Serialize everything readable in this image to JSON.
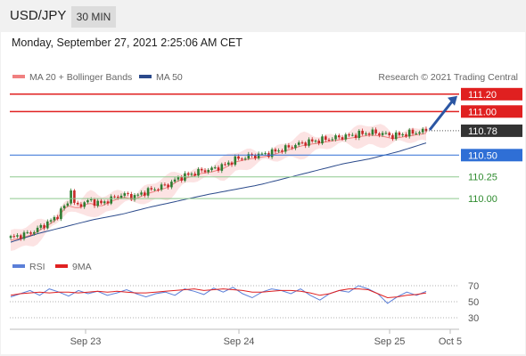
{
  "header": {
    "pair": "USD/JPY",
    "timeframe": "30 MIN",
    "datetime": "Monday, September 27, 2021 2:25:06 AM CET"
  },
  "chart_data": {
    "type": "candlestick",
    "legend": {
      "ma20": "MA 20 + Bollinger Bands",
      "ma50": "MA 50",
      "rsi": "RSI",
      "rsi_ma": "9MA"
    },
    "credit": "Research © 2021 Trading Central",
    "x_ticks": [
      "Sep 23",
      "Sep 24",
      "Sep 25",
      "Oct 5"
    ],
    "y_range": [
      109.46,
      111.3
    ],
    "levels": [
      {
        "value": 111.2,
        "label": "111.20",
        "color": "#e02020",
        "style": "red-box"
      },
      {
        "value": 111.0,
        "label": "111.00",
        "color": "#e02020",
        "style": "red-box"
      },
      {
        "value": 110.78,
        "label": "110.78",
        "color": "#333333",
        "style": "price-box"
      },
      {
        "value": 110.5,
        "label": "110.50",
        "color": "#2f6fd6",
        "style": "blue-box"
      },
      {
        "value": 110.25,
        "label": "110.25",
        "color": "#2e8b2e",
        "style": "green-text"
      },
      {
        "value": 110.0,
        "label": "110.00",
        "color": "#2e8b2e",
        "style": "green-text"
      }
    ],
    "last_price": 110.78,
    "price_path": [
      109.55,
      109.58,
      109.62,
      109.7,
      109.78,
      109.95,
      109.92,
      109.98,
      109.94,
      110.0,
      110.05,
      110.02,
      110.08,
      110.12,
      110.16,
      110.24,
      110.28,
      110.32,
      110.34,
      110.38,
      110.45,
      110.48,
      110.5,
      110.52,
      110.56,
      110.6,
      110.64,
      110.66,
      110.68,
      110.7,
      110.72,
      110.74,
      110.76,
      110.75,
      110.72,
      110.74,
      110.76,
      110.78
    ],
    "ma50_path": [
      109.5,
      109.6,
      109.68,
      109.76,
      109.82,
      109.9,
      109.97,
      110.04,
      110.1,
      110.16,
      110.24,
      110.32,
      110.4,
      110.46,
      110.54,
      110.64
    ],
    "rsi": {
      "levels": [
        70,
        50,
        30
      ],
      "range": [
        20,
        80
      ],
      "rsi_path": [
        56,
        60,
        64,
        58,
        66,
        62,
        57,
        64,
        60,
        63,
        58,
        61,
        65,
        60,
        56,
        60,
        62,
        58,
        66,
        63,
        59,
        67,
        62,
        68,
        60,
        55,
        62,
        66,
        64,
        60,
        66,
        58,
        52,
        60,
        64,
        62,
        70,
        66,
        60,
        48,
        56,
        62,
        58,
        63
      ],
      "ma_path": [
        58,
        60,
        61,
        62,
        61,
        62,
        62,
        61,
        62,
        63,
        62,
        63,
        62,
        61,
        61,
        62,
        63,
        64,
        65,
        66,
        64,
        65,
        66,
        65,
        64,
        62,
        62,
        63,
        64,
        64,
        63,
        61,
        58,
        60,
        64,
        66,
        66,
        65,
        60,
        55,
        56,
        58,
        59,
        61
      ]
    }
  }
}
